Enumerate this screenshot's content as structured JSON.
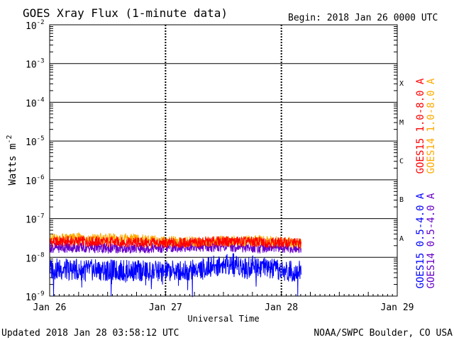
{
  "chart_data": {
    "type": "line",
    "title": "GOES Xray Flux (1-minute data)",
    "begin_label": "Begin:  2018 Jan 26 0000 UTC",
    "ylabel": "Watts m",
    "ylabel_sup": "-2",
    "xlabel": "Universal Time",
    "y_scale": "log",
    "ylim": [
      1e-09,
      0.01
    ],
    "x_ticks": [
      {
        "day": 0,
        "label": "Jan 26"
      },
      {
        "day": 1,
        "label": "Jan 27"
      },
      {
        "day": 2,
        "label": "Jan 28"
      },
      {
        "day": 3,
        "label": "Jan 29"
      }
    ],
    "y_ticks": [
      {
        "exp": -2,
        "label": "10",
        "sup": "-2"
      },
      {
        "exp": -3,
        "label": "10",
        "sup": "-3"
      },
      {
        "exp": -4,
        "label": "10",
        "sup": "-4"
      },
      {
        "exp": -5,
        "label": "10",
        "sup": "-5"
      },
      {
        "exp": -6,
        "label": "10",
        "sup": "-6"
      },
      {
        "exp": -7,
        "label": "10",
        "sup": "-7"
      },
      {
        "exp": -8,
        "label": "10",
        "sup": "-8"
      },
      {
        "exp": -9,
        "label": "10",
        "sup": "-9"
      }
    ],
    "flare_classes": [
      {
        "label": "X",
        "exp": -3.5
      },
      {
        "label": "M",
        "exp": -4.5
      },
      {
        "label": "C",
        "exp": -5.5
      },
      {
        "label": "B",
        "exp": -6.5
      },
      {
        "label": "A",
        "exp": -7.5
      }
    ],
    "series": [
      {
        "name": "GOES15 1.0-8.0 A",
        "color": "#ff0000",
        "x": [
          0,
          0.25,
          0.5,
          0.75,
          1.0,
          1.25,
          1.5,
          1.75,
          2.0,
          2.17
        ],
        "y": [
          2.5e-08,
          2.6e-08,
          2.5e-08,
          2.4e-08,
          2.3e-08,
          2.4e-08,
          2.6e-08,
          2.5e-08,
          2.4e-08,
          2.3e-08
        ]
      },
      {
        "name": "GOES14 1.0-8.0 A",
        "color": "#ffaa00",
        "x": [
          0,
          0.25,
          0.5,
          0.75,
          1.0,
          1.25,
          1.5,
          1.75,
          2.0,
          2.17
        ],
        "y": [
          3e-08,
          3.1e-08,
          3e-08,
          2.9e-08,
          2.6e-08,
          2.5e-08,
          2.6e-08,
          2.7e-08,
          2.5e-08,
          2.3e-08
        ]
      },
      {
        "name": "GOES15 0.5-4.0 A",
        "color": "#0000ff",
        "x": [
          0,
          0.25,
          0.5,
          0.75,
          1.0,
          1.25,
          1.5,
          1.6,
          1.7,
          1.75,
          1.85,
          2.0,
          2.17
        ],
        "y": [
          5e-09,
          4.8e-09,
          4.6e-09,
          4.5e-09,
          4.3e-09,
          4.8e-09,
          6.5e-09,
          7e-09,
          5e-09,
          6.5e-09,
          5.5e-09,
          4.3e-09,
          4.5e-09
        ]
      },
      {
        "name": "GOES14 0.5-4.0 A",
        "color": "#6600cc",
        "x": [
          0,
          0.25,
          0.5,
          0.75,
          1.0,
          1.25,
          1.5,
          1.75,
          2.0,
          2.17
        ],
        "y": [
          1.8e-08,
          1.8e-08,
          1.7e-08,
          1.7e-08,
          1.8e-08,
          1.9e-08,
          1.9e-08,
          1.8e-08,
          1.8e-08,
          1.7e-08
        ]
      }
    ],
    "grid": true
  },
  "footer": {
    "updated": "Updated 2018 Jan 28 03:58:12 UTC",
    "source": "NOAA/SWPC Boulder, CO USA"
  }
}
